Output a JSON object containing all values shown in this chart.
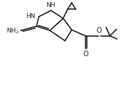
{
  "bg_color": "#ffffff",
  "line_color": "#1a1a1a",
  "line_width": 1.2,
  "text_color": "#1a1a1a",
  "font_size": 6.5,
  "figsize": [
    1.87,
    1.24
  ],
  "dpi": 100,
  "xlim": [
    0,
    10
  ],
  "ylim": [
    0,
    7
  ]
}
